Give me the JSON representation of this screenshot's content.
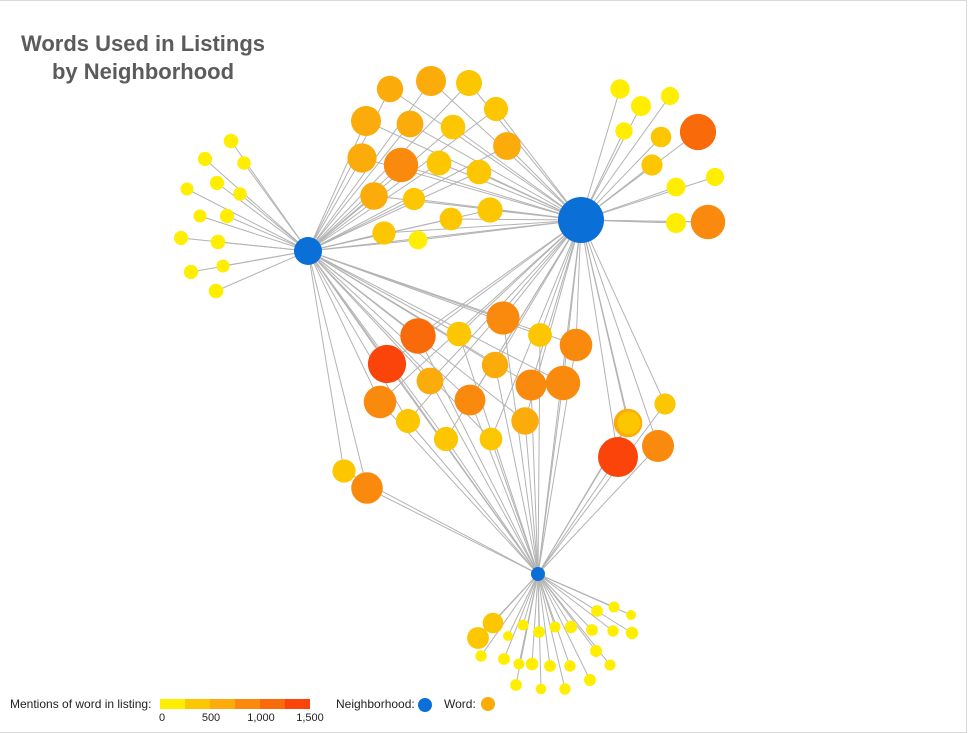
{
  "title_line1": "Words Used in Listings",
  "title_line2": "by Neighborhood",
  "colors": {
    "neighborhood": "#0a6fd6",
    "edge": "#b3b3b3",
    "scale": [
      "#ffee00",
      "#fcc600",
      "#fbab0a",
      "#f98a0e",
      "#f96a0b",
      "#fa4409"
    ]
  },
  "legend": {
    "mentions_label": "Mentions of word in listing:",
    "ticks": [
      "0",
      "500",
      "1,000",
      "1,500"
    ],
    "neighborhood_label": "Neighborhood:",
    "word_label": "Word:"
  },
  "graph": {
    "neighborhoods": [
      {
        "id": "A"
      },
      {
        "id": "B"
      },
      {
        "id": "C"
      }
    ],
    "word_mentions": [
      90,
      80,
      70,
      80,
      70,
      60,
      80,
      60,
      90,
      80,
      60,
      80,
      90,
      500,
      700,
      480,
      400,
      700,
      520,
      420,
      580,
      650,
      980,
      430,
      420,
      560,
      320,
      340,
      450,
      360,
      200,
      220,
      240,
      180,
      160,
      260,
      280,
      200,
      240,
      980,
      1100,
      180,
      850,
      1050,
      420,
      900,
      380,
      860,
      1250,
      500,
      520,
      760,
      980,
      860,
      750,
      400,
      550,
      340,
      400,
      620,
      1400,
      280,
      350,
      820,
      360,
      790,
      300,
      260,
      20,
      30,
      40,
      30,
      50,
      40,
      35,
      50,
      40,
      30,
      20,
      35,
      40,
      30,
      50,
      40,
      35,
      45,
      30,
      40,
      25,
      35,
      45,
      30
    ]
  }
}
